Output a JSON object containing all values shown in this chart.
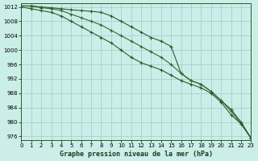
{
  "xlabel": "Graphe pression niveau de la mer (hPa)",
  "bg_color": "#cceee8",
  "grid_color": "#99cccc",
  "xlim": [
    0,
    23
  ],
  "ylim": [
    975,
    1013
  ],
  "yticks": [
    976,
    980,
    984,
    988,
    992,
    996,
    1000,
    1004,
    1008,
    1012
  ],
  "xticks": [
    0,
    1,
    2,
    3,
    4,
    5,
    6,
    7,
    8,
    9,
    10,
    11,
    12,
    13,
    14,
    15,
    16,
    17,
    18,
    19,
    20,
    21,
    22,
    23
  ],
  "series_top": [
    1012.3,
    1012.3,
    1012.0,
    1011.8,
    1011.5,
    1011.2,
    1011.0,
    1010.8,
    1010.5,
    1009.5,
    1008.0,
    1006.5,
    1005.0,
    1003.5,
    1002.5,
    1001.0,
    993.5,
    991.5,
    990.5,
    988.5,
    986.0,
    983.5,
    980.0,
    975.5
  ],
  "series_mid": [
    1012.3,
    1012.2,
    1011.8,
    1011.5,
    1011.0,
    1010.0,
    1009.0,
    1008.0,
    1007.0,
    1005.5,
    1004.0,
    1002.5,
    1001.0,
    999.5,
    998.0,
    996.0,
    993.5,
    991.5,
    990.5,
    988.5,
    986.0,
    983.0,
    979.5,
    975.5
  ],
  "series_bot": [
    1012.0,
    1011.5,
    1011.0,
    1010.5,
    1009.5,
    1008.0,
    1006.5,
    1005.0,
    1003.5,
    1002.0,
    1000.0,
    998.0,
    996.5,
    995.5,
    994.5,
    993.0,
    991.5,
    990.5,
    989.5,
    988.0,
    985.5,
    982.0,
    979.5,
    975.5
  ],
  "line_color_top": "#2d5a27",
  "line_color_mid": "#2d6a30",
  "line_color_bot": "#2d5a27",
  "lw": 0.8,
  "ms": 2.5,
  "mew": 0.8
}
